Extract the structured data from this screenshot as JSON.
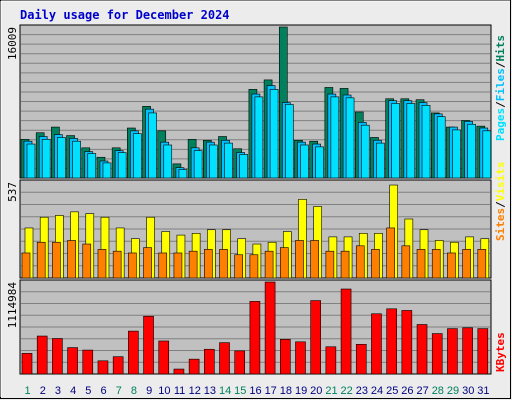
{
  "chart_data": {
    "type": "bar",
    "title": "Daily usage for December 2024",
    "categories": [
      "1",
      "2",
      "3",
      "4",
      "5",
      "6",
      "7",
      "8",
      "9",
      "10",
      "11",
      "12",
      "13",
      "14",
      "15",
      "16",
      "17",
      "18",
      "19",
      "20",
      "21",
      "22",
      "23",
      "24",
      "25",
      "26",
      "27",
      "28",
      "29",
      "30",
      "31"
    ],
    "weekend_categories": [
      "1",
      "7",
      "8",
      "14",
      "15",
      "21",
      "22",
      "28",
      "29"
    ],
    "colors": {
      "hits": "#00805c",
      "files": "#00c0ff",
      "pages": "#00e0ff",
      "visits": "#ffff00",
      "sites": "#ff8000",
      "kbytes": "#ff0000",
      "weekday_label": "#000080",
      "weekend_label": "#00805c",
      "plot_bg": "#c0c0c0",
      "grid": "#808080",
      "page_bg": "#ececec"
    },
    "panels": [
      {
        "id": "hits-files-pages",
        "ymax_label": "16009",
        "ylim": [
          0,
          16009
        ],
        "legend": [
          {
            "text": "Pages",
            "color": "#00e0ff"
          },
          {
            "text": "Files",
            "color": "#00c0ff"
          },
          {
            "text": "Hits",
            "color": "#00805c"
          }
        ],
        "series": [
          {
            "name": "Hits",
            "key": "hits",
            "values": [
              4100,
              4800,
              5400,
              4500,
              3200,
              2200,
              3200,
              5300,
              7600,
              5000,
              1500,
              4100,
              4000,
              4400,
              3100,
              9400,
              10400,
              16009,
              4000,
              3900,
              9600,
              9500,
              7000,
              4300,
              8400,
              8400,
              8300,
              6900,
              5400,
              6100,
              5500
            ]
          },
          {
            "name": "Files",
            "key": "files",
            "values": [
              3900,
              4400,
              4600,
              4200,
              2800,
              1800,
              2900,
              5000,
              7300,
              3800,
              1100,
              3200,
              3800,
              4000,
              2700,
              8900,
              9800,
              8000,
              3800,
              3600,
              8900,
              8800,
              5900,
              4000,
              8200,
              8200,
              8000,
              6800,
              5400,
              6000,
              5300
            ]
          },
          {
            "name": "Pages",
            "key": "pages",
            "values": [
              3600,
              4100,
              4300,
              3900,
              2600,
              1600,
              2700,
              4700,
              6900,
              3500,
              900,
              2900,
              3500,
              3700,
              2500,
              8600,
              9400,
              7800,
              3500,
              3300,
              8600,
              8500,
              5600,
              3700,
              7900,
              7900,
              7700,
              6500,
              5100,
              5700,
              5000
            ]
          }
        ]
      },
      {
        "id": "visits-sites",
        "ymax_label": "537",
        "ylim": [
          0,
          537
        ],
        "legend": [
          {
            "text": "Sites",
            "color": "#ff8000"
          },
          {
            "text": "Visits",
            "color": "#ffff00"
          }
        ],
        "series": [
          {
            "name": "Visits",
            "key": "visits",
            "values": [
              280,
              340,
              350,
              370,
              360,
              340,
              280,
              220,
              340,
              260,
              240,
              250,
              270,
              270,
              220,
              190,
              200,
              260,
              440,
              400,
              230,
              230,
              250,
              250,
              520,
              330,
              270,
              210,
              200,
              230,
              220
            ]
          },
          {
            "name": "Sites",
            "key": "sites",
            "values": [
              140,
              200,
              200,
              210,
              190,
              160,
              150,
              140,
              170,
              140,
              140,
              150,
              160,
              160,
              130,
              130,
              150,
              170,
              210,
              210,
              150,
              150,
              180,
              160,
              280,
              180,
              160,
              160,
              140,
              160,
              160
            ]
          }
        ]
      },
      {
        "id": "kbytes",
        "ymax_label": "1114984",
        "ylim": [
          0,
          1114984
        ],
        "legend": [
          {
            "text": "KBytes",
            "color": "#ff0000"
          }
        ],
        "series": [
          {
            "name": "KBytes",
            "key": "kbytes",
            "values": [
              250000,
              460000,
              430000,
              320000,
              290000,
              160000,
              210000,
              520000,
              700000,
              400000,
              60000,
              180000,
              300000,
              380000,
              280000,
              880000,
              1114984,
              420000,
              390000,
              890000,
              330000,
              1030000,
              360000,
              730000,
              790000,
              770000,
              600000,
              490000,
              550000,
              560000,
              550000
            ]
          }
        ]
      }
    ]
  }
}
